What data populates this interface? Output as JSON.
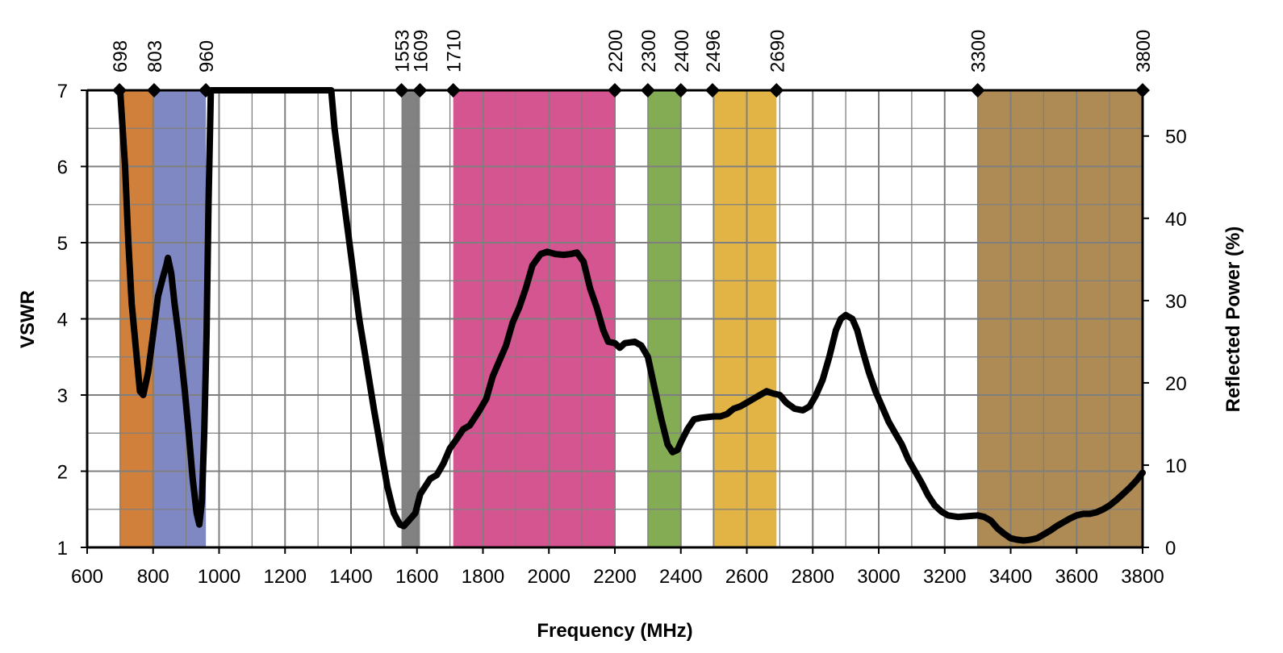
{
  "chart_data": {
    "type": "line",
    "xlabel": "Frequency (MHz)",
    "ylabel": "VSWR",
    "y2label": "Reflected Power (%)",
    "xlim": [
      600,
      3800
    ],
    "ylim": [
      1,
      7
    ],
    "y2lim": [
      0,
      55.56
    ],
    "x_ticks": [
      600,
      800,
      1000,
      1200,
      1400,
      1600,
      1800,
      2000,
      2200,
      2400,
      2600,
      2800,
      3000,
      3200,
      3400,
      3600,
      3800
    ],
    "y_ticks": [
      1,
      2,
      3,
      4,
      5,
      6,
      7
    ],
    "y2_ticks": [
      0,
      10,
      20,
      30,
      40,
      50
    ],
    "grid": true,
    "bands": [
      {
        "from": 698,
        "to": 803,
        "color": "#D0803A"
      },
      {
        "from": 803,
        "to": 960,
        "color": "#8088C3"
      },
      {
        "from": 1553,
        "to": 1609,
        "color": "#828282"
      },
      {
        "from": 1710,
        "to": 2200,
        "color": "#D4558F"
      },
      {
        "from": 2300,
        "to": 2400,
        "color": "#84AC55"
      },
      {
        "from": 2496,
        "to": 2690,
        "color": "#E1B445"
      },
      {
        "from": 3300,
        "to": 3800,
        "color": "#AE8A55"
      }
    ],
    "band_markers": [
      698,
      803,
      960,
      1553,
      1609,
      1710,
      2200,
      2300,
      2400,
      2496,
      2690,
      3300,
      3800
    ],
    "series": [
      {
        "color": "#000000",
        "points": [
          [
            700,
            7.0
          ],
          [
            715,
            6.0
          ],
          [
            725,
            5.0
          ],
          [
            735,
            4.2
          ],
          [
            748,
            3.6
          ],
          [
            760,
            3.05
          ],
          [
            770,
            3.0
          ],
          [
            785,
            3.3
          ],
          [
            800,
            3.8
          ],
          [
            815,
            4.3
          ],
          [
            830,
            4.55
          ],
          [
            840,
            4.7
          ],
          [
            845,
            4.8
          ],
          [
            855,
            4.6
          ],
          [
            865,
            4.2
          ],
          [
            880,
            3.7
          ],
          [
            895,
            3.1
          ],
          [
            908,
            2.5
          ],
          [
            920,
            1.9
          ],
          [
            932,
            1.45
          ],
          [
            940,
            1.3
          ],
          [
            948,
            1.6
          ],
          [
            955,
            2.5
          ],
          [
            962,
            3.8
          ],
          [
            968,
            5.5
          ],
          [
            975,
            7.0
          ],
          [
            1340,
            7.0
          ],
          [
            1350,
            6.5
          ],
          [
            1365,
            6.0
          ],
          [
            1380,
            5.5
          ],
          [
            1395,
            5.0
          ],
          [
            1410,
            4.5
          ],
          [
            1425,
            4.0
          ],
          [
            1440,
            3.6
          ],
          [
            1455,
            3.2
          ],
          [
            1470,
            2.8
          ],
          [
            1490,
            2.3
          ],
          [
            1510,
            1.8
          ],
          [
            1530,
            1.45
          ],
          [
            1548,
            1.3
          ],
          [
            1560,
            1.28
          ],
          [
            1575,
            1.35
          ],
          [
            1595,
            1.45
          ],
          [
            1610,
            1.7
          ],
          [
            1625,
            1.8
          ],
          [
            1640,
            1.9
          ],
          [
            1660,
            1.95
          ],
          [
            1680,
            2.1
          ],
          [
            1700,
            2.3
          ],
          [
            1720,
            2.42
          ],
          [
            1740,
            2.55
          ],
          [
            1760,
            2.6
          ],
          [
            1790,
            2.8
          ],
          [
            1810,
            2.95
          ],
          [
            1830,
            3.25
          ],
          [
            1850,
            3.45
          ],
          [
            1870,
            3.65
          ],
          [
            1890,
            3.95
          ],
          [
            1910,
            4.15
          ],
          [
            1930,
            4.4
          ],
          [
            1950,
            4.7
          ],
          [
            1975,
            4.85
          ],
          [
            1995,
            4.88
          ],
          [
            2020,
            4.85
          ],
          [
            2045,
            4.84
          ],
          [
            2065,
            4.85
          ],
          [
            2085,
            4.87
          ],
          [
            2105,
            4.75
          ],
          [
            2125,
            4.4
          ],
          [
            2145,
            4.15
          ],
          [
            2165,
            3.85
          ],
          [
            2180,
            3.7
          ],
          [
            2200,
            3.68
          ],
          [
            2215,
            3.62
          ],
          [
            2230,
            3.68
          ],
          [
            2260,
            3.7
          ],
          [
            2280,
            3.65
          ],
          [
            2300,
            3.5
          ],
          [
            2320,
            3.1
          ],
          [
            2340,
            2.7
          ],
          [
            2360,
            2.35
          ],
          [
            2375,
            2.25
          ],
          [
            2390,
            2.28
          ],
          [
            2400,
            2.38
          ],
          [
            2420,
            2.55
          ],
          [
            2440,
            2.68
          ],
          [
            2460,
            2.7
          ],
          [
            2480,
            2.71
          ],
          [
            2500,
            2.72
          ],
          [
            2520,
            2.72
          ],
          [
            2540,
            2.75
          ],
          [
            2560,
            2.82
          ],
          [
            2580,
            2.85
          ],
          [
            2600,
            2.9
          ],
          [
            2620,
            2.95
          ],
          [
            2640,
            3.0
          ],
          [
            2660,
            3.05
          ],
          [
            2680,
            3.02
          ],
          [
            2700,
            3.0
          ],
          [
            2720,
            2.9
          ],
          [
            2745,
            2.82
          ],
          [
            2770,
            2.8
          ],
          [
            2790,
            2.85
          ],
          [
            2810,
            3.0
          ],
          [
            2830,
            3.2
          ],
          [
            2850,
            3.5
          ],
          [
            2870,
            3.85
          ],
          [
            2885,
            4.0
          ],
          [
            2900,
            4.05
          ],
          [
            2920,
            4.0
          ],
          [
            2935,
            3.85
          ],
          [
            2950,
            3.6
          ],
          [
            2970,
            3.3
          ],
          [
            2990,
            3.05
          ],
          [
            3010,
            2.85
          ],
          [
            3030,
            2.65
          ],
          [
            3050,
            2.5
          ],
          [
            3070,
            2.35
          ],
          [
            3090,
            2.15
          ],
          [
            3110,
            2.0
          ],
          [
            3130,
            1.85
          ],
          [
            3150,
            1.68
          ],
          [
            3170,
            1.55
          ],
          [
            3190,
            1.47
          ],
          [
            3210,
            1.42
          ],
          [
            3240,
            1.4
          ],
          [
            3270,
            1.41
          ],
          [
            3300,
            1.42
          ],
          [
            3320,
            1.4
          ],
          [
            3340,
            1.35
          ],
          [
            3360,
            1.25
          ],
          [
            3380,
            1.18
          ],
          [
            3400,
            1.12
          ],
          [
            3420,
            1.1
          ],
          [
            3440,
            1.09
          ],
          [
            3460,
            1.1
          ],
          [
            3480,
            1.12
          ],
          [
            3500,
            1.17
          ],
          [
            3520,
            1.22
          ],
          [
            3540,
            1.28
          ],
          [
            3560,
            1.33
          ],
          [
            3580,
            1.38
          ],
          [
            3600,
            1.42
          ],
          [
            3620,
            1.44
          ],
          [
            3640,
            1.44
          ],
          [
            3660,
            1.46
          ],
          [
            3680,
            1.5
          ],
          [
            3700,
            1.55
          ],
          [
            3720,
            1.62
          ],
          [
            3740,
            1.7
          ],
          [
            3760,
            1.78
          ],
          [
            3780,
            1.87
          ],
          [
            3800,
            1.98
          ]
        ]
      }
    ]
  }
}
